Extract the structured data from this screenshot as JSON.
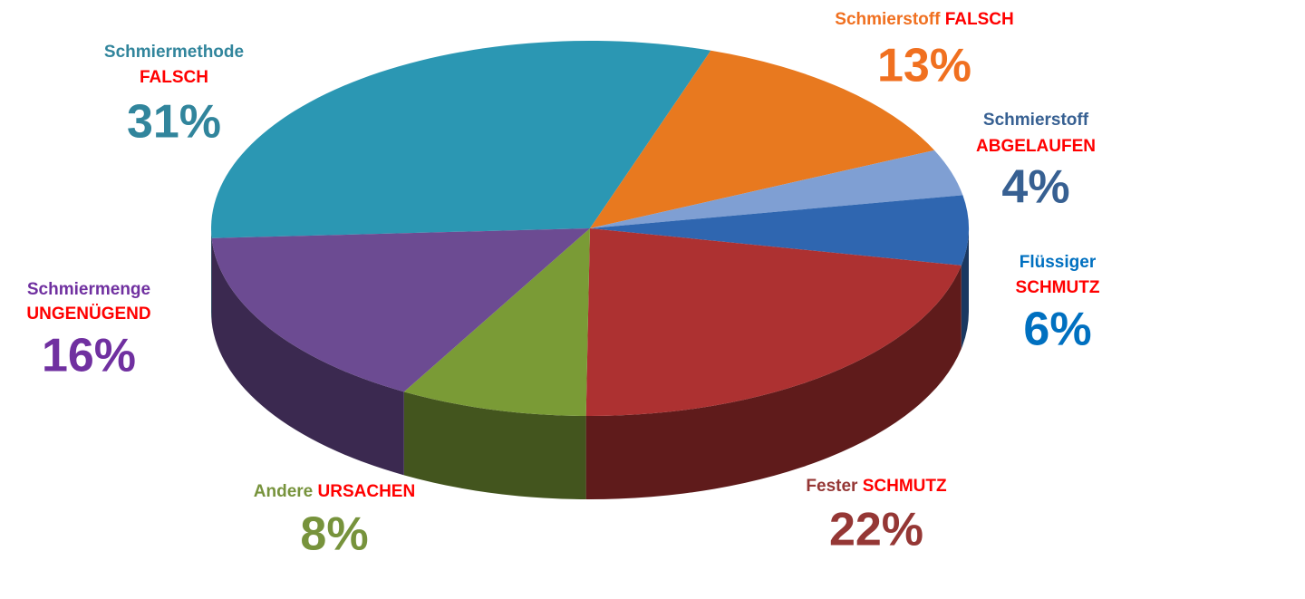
{
  "chart_data": {
    "type": "pie",
    "labels": [
      {
        "text": "Schmiermethode",
        "highlight": "FALSCH"
      },
      {
        "text": "Schmierstoff",
        "highlight": "FALSCH"
      },
      {
        "text": "Schmierstoff",
        "highlight": "ABGELAUFEN"
      },
      {
        "text": "Flüssiger",
        "highlight": "SCHMUTZ"
      },
      {
        "text": "Fester",
        "highlight": "SCHMUTZ"
      },
      {
        "text": "Andere",
        "highlight": "URSACHEN"
      },
      {
        "text": "Schmiermenge",
        "highlight": "UNGENÜGEND"
      }
    ],
    "values": [
      31,
      13,
      4,
      6,
      22,
      8,
      16
    ],
    "value_labels": [
      "31%",
      "13%",
      "4%",
      "6%",
      "22%",
      "8%",
      "16%"
    ],
    "colors": [
      "#2b97b3",
      "#e8791f",
      "#7f9fd3",
      "#2f66b0",
      "#ad3131",
      "#7a9b36",
      "#6c4b92"
    ],
    "label_colors": [
      "#31859c",
      "#f07020",
      "#376092",
      "#0070c0",
      "#953735",
      "#77933c",
      "#7030a0"
    ],
    "highlight_color": "#ff0000"
  }
}
